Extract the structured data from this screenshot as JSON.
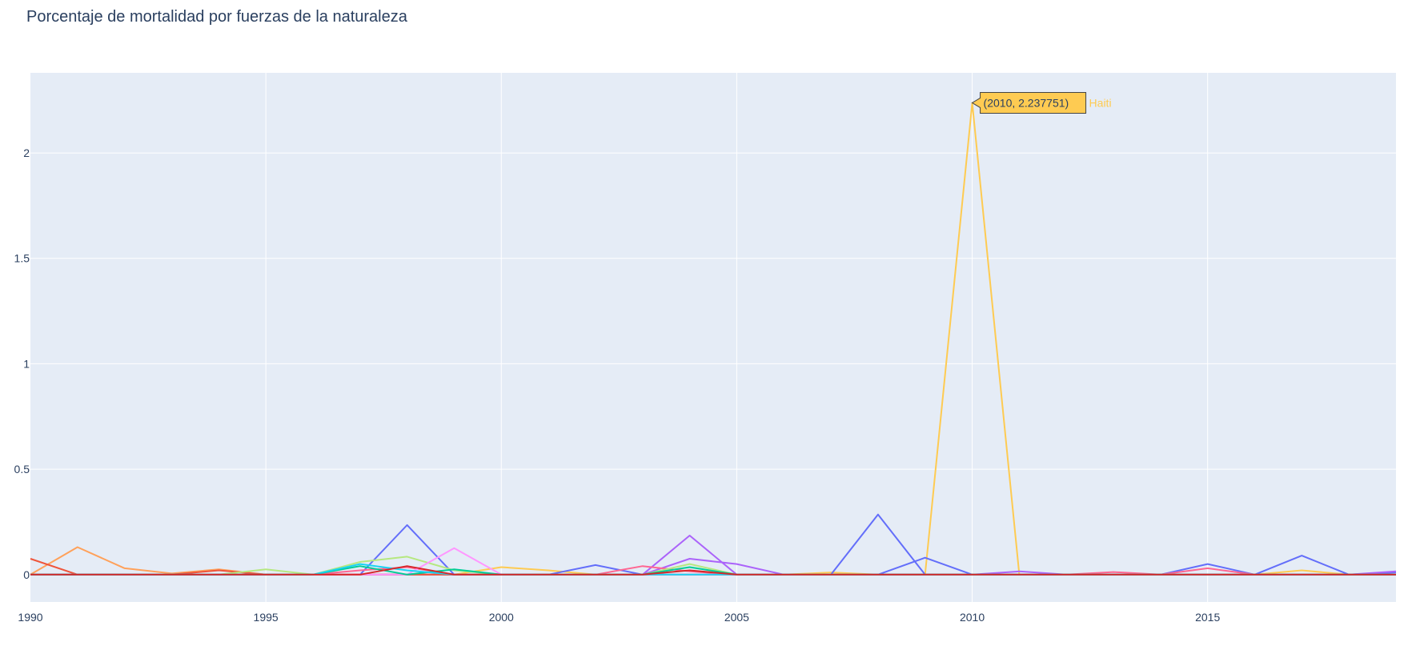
{
  "chart_data": {
    "type": "line",
    "title": "Porcentaje de mortalidad por fuerzas de la naturaleza",
    "xlabel": "",
    "ylabel": "",
    "xlim": [
      1990,
      2019
    ],
    "ylim": [
      -0.13,
      2.38
    ],
    "x_ticks": [
      1990,
      1995,
      2000,
      2005,
      2010,
      2015
    ],
    "y_ticks": [
      0,
      0.5,
      1,
      1.5,
      2
    ],
    "y_tick_labels": [
      "0",
      "0.5",
      "1",
      "1.5",
      "2"
    ],
    "grid": true,
    "plot_background": "#e5ecf6",
    "grid_color": "#ffffff",
    "legend": "none",
    "x": [
      1990,
      1991,
      1992,
      1993,
      1994,
      1995,
      1996,
      1997,
      1998,
      1999,
      2000,
      2001,
      2002,
      2003,
      2004,
      2005,
      2006,
      2007,
      2008,
      2009,
      2010,
      2011,
      2012,
      2013,
      2014,
      2015,
      2016,
      2017,
      2018,
      2019
    ],
    "series": [
      {
        "color": "#FECB52",
        "values": [
          0,
          0,
          0,
          0,
          0,
          0,
          0,
          0,
          0,
          0,
          0.035,
          0.02,
          0,
          0,
          0,
          0,
          0,
          0.01,
          0,
          0,
          2.237751,
          0,
          0,
          0,
          0,
          0,
          0,
          0.02,
          0,
          0
        ]
      },
      {
        "color": "#636EFA",
        "values": [
          0,
          0,
          0,
          0,
          0,
          0,
          0,
          0,
          0.235,
          0,
          0,
          0,
          0.045,
          0,
          0,
          0,
          0,
          0,
          0.285,
          0,
          0,
          0,
          0,
          0,
          0,
          0.05,
          0,
          0.09,
          0,
          0.01
        ]
      },
      {
        "color": "#636EFA",
        "values": [
          0,
          0,
          0,
          0,
          0,
          0,
          0,
          0,
          0,
          0,
          0,
          0,
          0,
          0,
          0,
          0,
          0,
          0,
          0,
          0.08,
          0,
          0,
          0,
          0,
          0,
          0,
          0,
          0,
          0,
          0
        ]
      },
      {
        "color": "#AB63FA",
        "values": [
          0,
          0,
          0,
          0,
          0,
          0,
          0,
          0,
          0,
          0,
          0,
          0,
          0,
          0,
          0.185,
          0,
          0,
          0,
          0,
          0,
          0,
          0,
          0,
          0,
          0,
          0,
          0,
          0,
          0,
          0
        ]
      },
      {
        "color": "#AB63FA",
        "values": [
          0,
          0,
          0,
          0,
          0,
          0,
          0,
          0,
          0,
          0,
          0,
          0,
          0,
          0,
          0.075,
          0.05,
          0,
          0,
          0,
          0,
          0,
          0.015,
          0,
          0,
          0,
          0,
          0,
          0,
          0,
          0.015
        ]
      },
      {
        "color": "#FFA15A",
        "values": [
          0,
          0.13,
          0.03,
          0.005,
          0.025,
          0,
          0,
          0,
          0,
          0,
          0,
          0,
          0,
          0,
          0,
          0,
          0,
          0,
          0,
          0,
          0,
          0,
          0,
          0,
          0,
          0,
          0,
          0,
          0,
          0
        ]
      },
      {
        "color": "#EF553B",
        "values": [
          0.075,
          0,
          0,
          0,
          0.02,
          0,
          0,
          0,
          0,
          0,
          0,
          0,
          0,
          0,
          0,
          0,
          0,
          0,
          0,
          0,
          0,
          0,
          0,
          0,
          0,
          0,
          0,
          0,
          0,
          0
        ]
      },
      {
        "color": "#FF6692",
        "values": [
          0,
          0,
          0,
          0,
          0,
          0,
          0,
          0.02,
          0.035,
          0,
          0,
          0,
          0,
          0.04,
          0.015,
          0,
          0,
          0,
          0,
          0,
          0,
          0,
          0,
          0.012,
          0,
          0.03,
          0,
          0,
          0,
          0
        ]
      },
      {
        "color": "#B6E880",
        "values": [
          0,
          0,
          0,
          0,
          0,
          0.025,
          0,
          0.06,
          0.085,
          0.02,
          0,
          0,
          0,
          0,
          0.05,
          0,
          0,
          0,
          0,
          0,
          0,
          0,
          0,
          0,
          0,
          0,
          0,
          0,
          0,
          0
        ]
      },
      {
        "color": "#FF97FF",
        "values": [
          0,
          0,
          0,
          0,
          0,
          0,
          0,
          0,
          0,
          0.125,
          0,
          0,
          0,
          0,
          0,
          0,
          0,
          0,
          0,
          0,
          0,
          0,
          0,
          0,
          0,
          0,
          0,
          0,
          0,
          0
        ]
      },
      {
        "color": "#00CC96",
        "values": [
          0,
          0,
          0,
          0,
          0,
          0,
          0,
          0.04,
          0,
          0.025,
          0,
          0,
          0,
          0,
          0.035,
          0,
          0,
          0,
          0,
          0,
          0,
          0,
          0,
          0,
          0,
          0,
          0,
          0,
          0,
          0
        ]
      },
      {
        "color": "#19D3F3",
        "values": [
          0,
          0,
          0,
          0,
          0,
          0,
          0,
          0.05,
          0.02,
          0,
          0,
          0,
          0,
          0,
          0,
          0,
          0,
          0,
          0,
          0,
          0,
          0,
          0,
          0,
          0,
          0,
          0,
          0,
          0,
          0
        ]
      },
      {
        "color": "#D62728",
        "values": [
          0,
          0,
          0,
          0,
          0,
          0,
          0,
          0,
          0.04,
          0,
          0,
          0,
          0,
          0,
          0.02,
          0,
          0,
          0,
          0,
          0,
          0,
          0,
          0,
          0,
          0,
          0,
          0,
          0,
          0,
          0
        ]
      }
    ],
    "hover": {
      "label": "(2010, 2.237751)",
      "x": 2010,
      "y": 2.237751,
      "name": "Haiti",
      "color": "#FECB52"
    }
  }
}
